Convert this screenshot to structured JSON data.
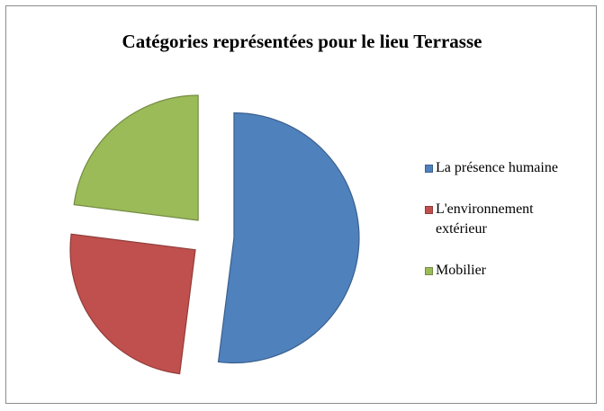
{
  "chart_data": {
    "type": "pie",
    "title": "Catégories représentées pour le lieu Terrasse",
    "categories": [
      "La présence humaine",
      "L'environnement extérieur",
      "Mobilier"
    ],
    "values": [
      52,
      25,
      23
    ],
    "colors": [
      "#4f81bd",
      "#c0504d",
      "#9bbb59"
    ],
    "exploded": true,
    "legend": "right"
  }
}
